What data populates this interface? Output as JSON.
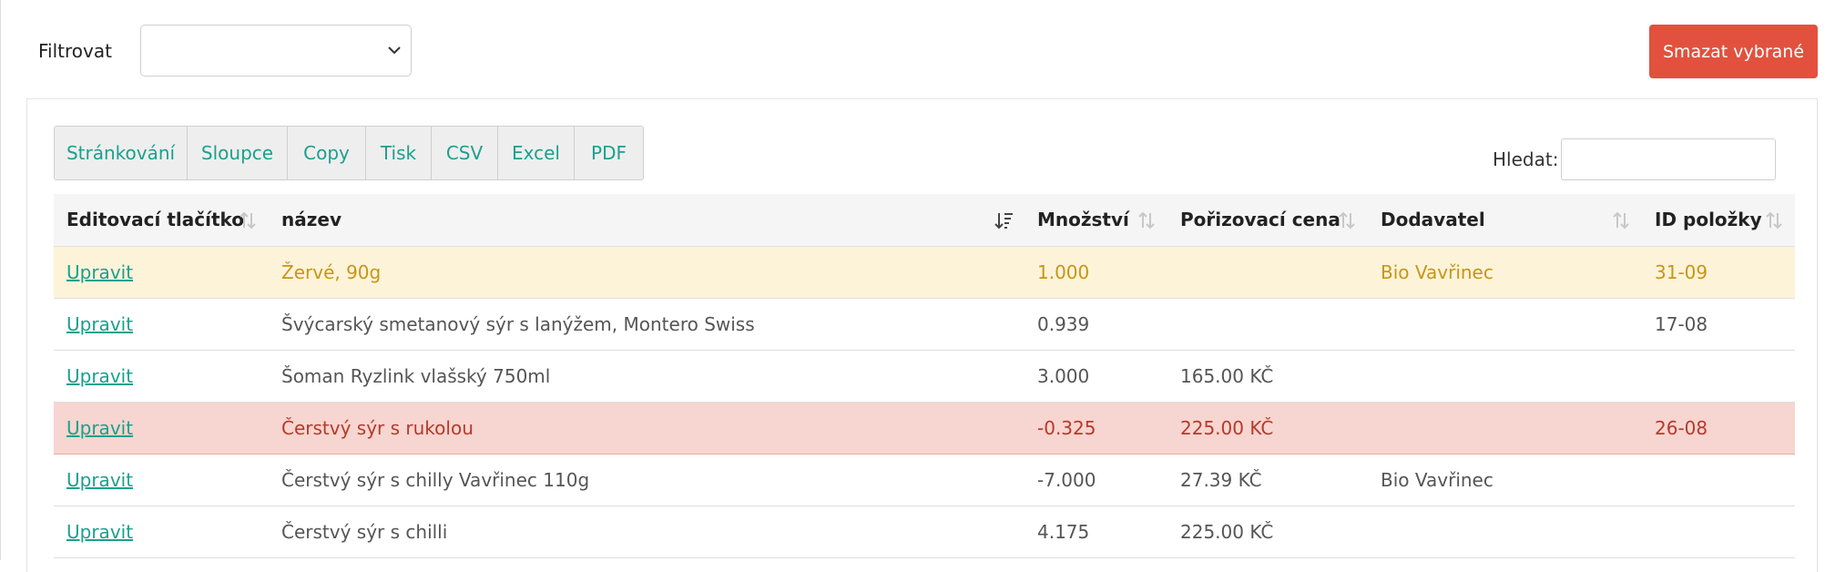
{
  "filter": {
    "label": "Filtrovat",
    "value": ""
  },
  "delete_button": "Smazat vybrané",
  "toolbar": {
    "buttons": [
      "Stránkování",
      "Sloupce",
      "Copy",
      "Tisk",
      "CSV",
      "Excel",
      "PDF"
    ]
  },
  "search": {
    "label": "Hledat:",
    "value": ""
  },
  "table": {
    "columns": [
      "Editovací tlačítko",
      "název",
      "Množství",
      "Pořizovací cena",
      "Dodavatel",
      "ID položky"
    ],
    "sorted_column": "název",
    "rows": [
      {
        "status": "warning",
        "edit": "Upravit",
        "name": "Žervé, 90g",
        "qty": "1.000",
        "price": "",
        "supplier": "Bio Vavřinec",
        "id": "31-09"
      },
      {
        "status": "normal",
        "edit": "Upravit",
        "name": "Švýcarský smetanový sýr s lanýžem, Montero Swiss",
        "qty": "0.939",
        "price": "",
        "supplier": "",
        "id": "17-08"
      },
      {
        "status": "normal",
        "edit": "Upravit",
        "name": "Šoman Ryzlink vlašský 750ml",
        "qty": "3.000",
        "price": "165.00 KČ",
        "supplier": "",
        "id": ""
      },
      {
        "status": "danger",
        "edit": "Upravit",
        "name": "Čerstvý sýr s rukolou",
        "qty": "-0.325",
        "price": "225.00 KČ",
        "supplier": "",
        "id": "26-08"
      },
      {
        "status": "normal",
        "edit": "Upravit",
        "name": "Čerstvý sýr s chilly Vavřinec 110g",
        "qty": "-7.000",
        "price": "27.39 KČ",
        "supplier": "Bio Vavřinec",
        "id": ""
      },
      {
        "status": "normal",
        "edit": "Upravit",
        "name": "Čerstvý sýr s chilli",
        "qty": "4.175",
        "price": "225.00 KČ",
        "supplier": "",
        "id": ""
      }
    ]
  },
  "colors": {
    "accent": "#1ba08d",
    "danger_button": "#e2513e",
    "warning_row": "#fcf3d9",
    "danger_row": "#f7d5d0"
  },
  "icons": {
    "select": "chevron-down-icon",
    "sort": "sort-both-icon",
    "sort_active": "sort-desc-icon"
  }
}
